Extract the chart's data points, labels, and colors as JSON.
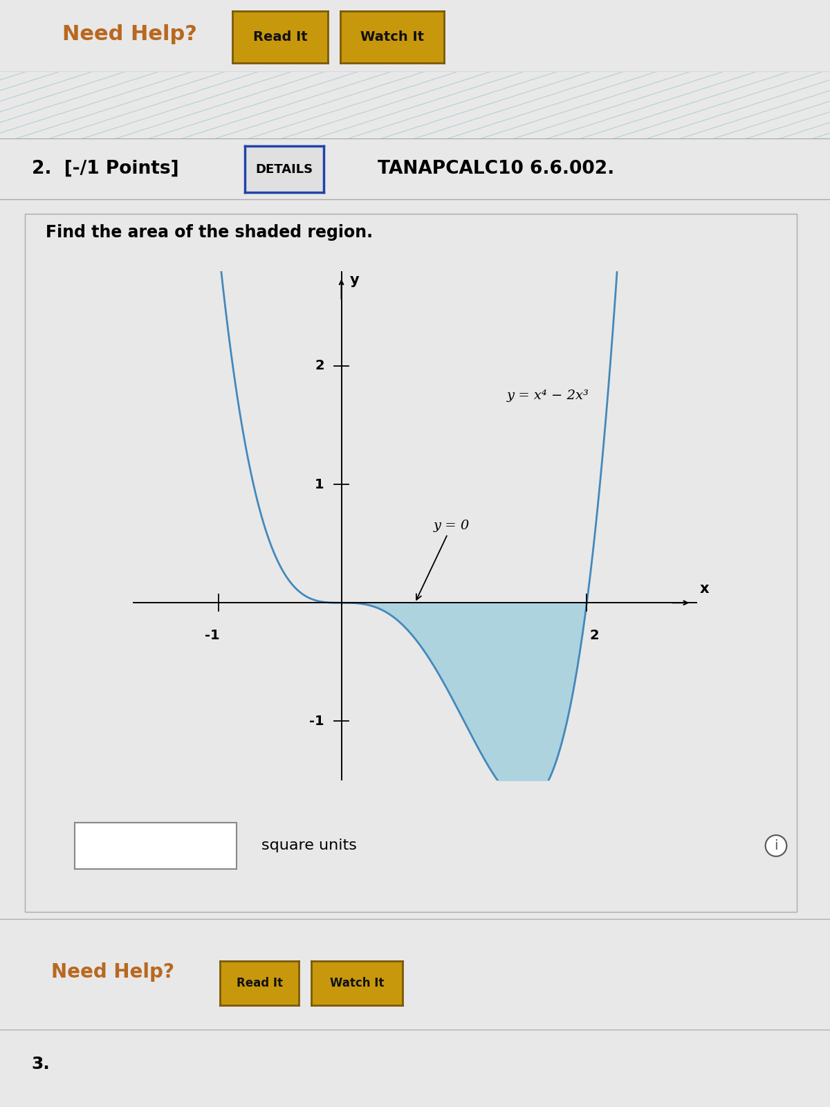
{
  "page_bg": "#e8e8e8",
  "top_section_bg": "#dedad4",
  "mid_stripe_bg": "#d8e8e0",
  "header_bg": "#e0e0e0",
  "content_bg": "#e8e8e8",
  "graph_bg": "#e8e8e8",
  "bottom_strip_bg": "#d4d4d0",
  "section1_text": "Need Help?",
  "section1_color": "#b86820",
  "btn1_text": "Read It",
  "btn2_text": "Watch It",
  "btn_bg": "#c8980c",
  "btn_border": "#7a5a08",
  "section2_label": "2.  [-/1 Points]",
  "details_text": "DETAILS",
  "details_border": "#2244aa",
  "course_text": "TANAPCALC10 6.6.002.",
  "instruction": "Find the area of the shaded region.",
  "curve_color": "#4488bb",
  "shade_color": "#99ccdd",
  "shade_alpha": 0.75,
  "xlim": [
    -1.7,
    2.9
  ],
  "ylim": [
    -1.5,
    2.8
  ],
  "x_ticks": [
    -1,
    2
  ],
  "y_ticks": [
    -1,
    1,
    2
  ],
  "xlabel": "x",
  "ylabel": "y",
  "eq_label": "y = x⁴ − 2x³",
  "y0_label": "y = 0",
  "square_units_text": "square units",
  "need_help2_text": "Need Help?",
  "btn3_text": "Read It",
  "btn4_text": "Watch It",
  "info_circle": "i",
  "num3_text": "3."
}
